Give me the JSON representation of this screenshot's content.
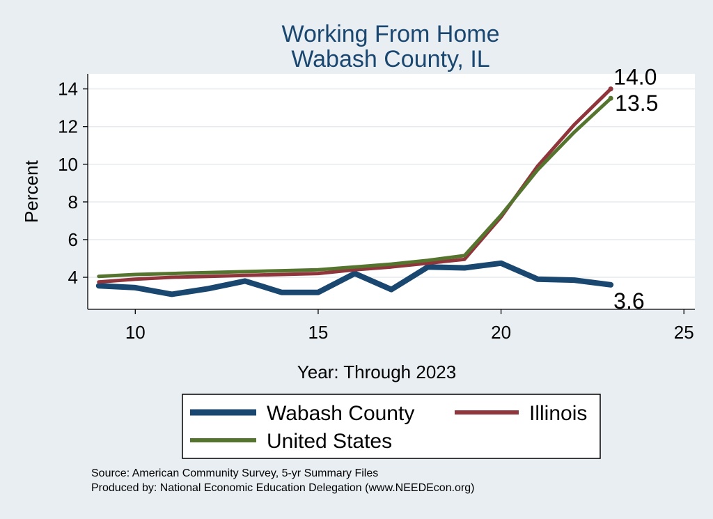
{
  "chart_data": {
    "type": "line",
    "title": "Working From Home",
    "subtitle": "Wabash County, IL",
    "xlabel": "Year: Through 2023",
    "ylabel": "Percent",
    "xlim": [
      8.7,
      25.3
    ],
    "ylim": [
      2.3,
      14.8
    ],
    "xticks": [
      10,
      15,
      20,
      25
    ],
    "yticks": [
      4,
      6,
      8,
      10,
      12,
      14
    ],
    "grid": true,
    "legend_position": "bottom",
    "series": [
      {
        "name": "Wabash County",
        "color": "#1a476f",
        "x": [
          9,
          10,
          11,
          12,
          13,
          14,
          15,
          16,
          17,
          18,
          19,
          20,
          21,
          22,
          23
        ],
        "values": [
          3.55,
          3.45,
          3.1,
          3.4,
          3.8,
          3.2,
          3.2,
          4.2,
          3.35,
          4.55,
          4.5,
          4.75,
          3.9,
          3.85,
          3.6
        ],
        "end_label": "3.6"
      },
      {
        "name": "Illinois",
        "color": "#90353b",
        "x": [
          9,
          10,
          11,
          12,
          13,
          14,
          15,
          16,
          17,
          18,
          19,
          20,
          21,
          22,
          23
        ],
        "values": [
          3.75,
          3.9,
          4.0,
          4.05,
          4.1,
          4.15,
          4.2,
          4.4,
          4.55,
          4.75,
          4.95,
          7.2,
          9.9,
          12.1,
          14.0
        ],
        "end_label": "14.0"
      },
      {
        "name": "United States",
        "color": "#55752f",
        "x": [
          9,
          10,
          11,
          12,
          13,
          14,
          15,
          16,
          17,
          18,
          19,
          20,
          21,
          22,
          23
        ],
        "values": [
          4.05,
          4.15,
          4.2,
          4.25,
          4.3,
          4.35,
          4.4,
          4.55,
          4.7,
          4.9,
          5.15,
          7.3,
          9.7,
          11.7,
          13.5
        ],
        "end_label": "13.5"
      }
    ]
  },
  "legend_items": [
    {
      "label": "Wabash County",
      "color": "#1a476f"
    },
    {
      "label": "Illinois",
      "color": "#90353b"
    },
    {
      "label": "United States",
      "color": "#55752f"
    }
  ],
  "source_line": "Source: American Community Survey, 5-yr Summary Files",
  "produced_line": "Produced by: National Economic Education Delegation (www.NEEDEcon.org)"
}
